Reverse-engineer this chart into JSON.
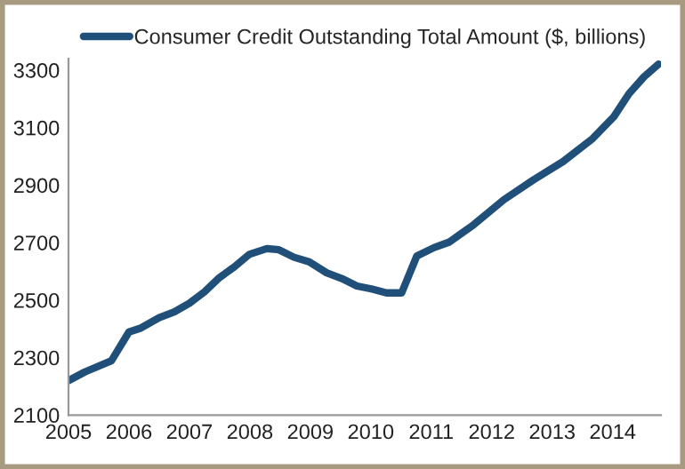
{
  "chart_data": {
    "type": "line",
    "x": [
      2005.0,
      2005.27,
      2005.71,
      2006.0,
      2006.2,
      2006.5,
      2006.75,
      2007.0,
      2007.25,
      2007.5,
      2007.74,
      2007.99,
      2008.28,
      2008.48,
      2008.73,
      2008.98,
      2009.27,
      2009.52,
      2009.77,
      2010.01,
      2010.26,
      2010.51,
      2010.76,
      2011.05,
      2011.3,
      2011.7,
      2012.2,
      2012.69,
      2013.18,
      2013.67,
      2014.02,
      2014.27,
      2014.52,
      2014.76
    ],
    "series": [
      {
        "name": "Consumer Credit Outstanding Total Amount ($, billions)",
        "color": "#20507a",
        "values": [
          2220,
          2250,
          2289,
          2389,
          2403,
          2439,
          2459,
          2489,
          2529,
          2579,
          2615,
          2659,
          2679,
          2675,
          2649,
          2633,
          2595,
          2575,
          2549,
          2539,
          2525,
          2525,
          2653,
          2683,
          2702,
          2762,
          2849,
          2918,
          2982,
          3062,
          3138,
          3218,
          3277,
          3321
        ]
      }
    ],
    "xlim": [
      2005,
      2014.8
    ],
    "xticks": [
      2005,
      2006,
      2007,
      2008,
      2009,
      2010,
      2011,
      2012,
      2013,
      2014
    ],
    "ylim": [
      2100,
      3340
    ],
    "yticks": [
      2100,
      2300,
      2500,
      2700,
      2900,
      3100,
      3300
    ],
    "grid": false,
    "legend": "top",
    "marker": "none",
    "line_style": "solid"
  }
}
